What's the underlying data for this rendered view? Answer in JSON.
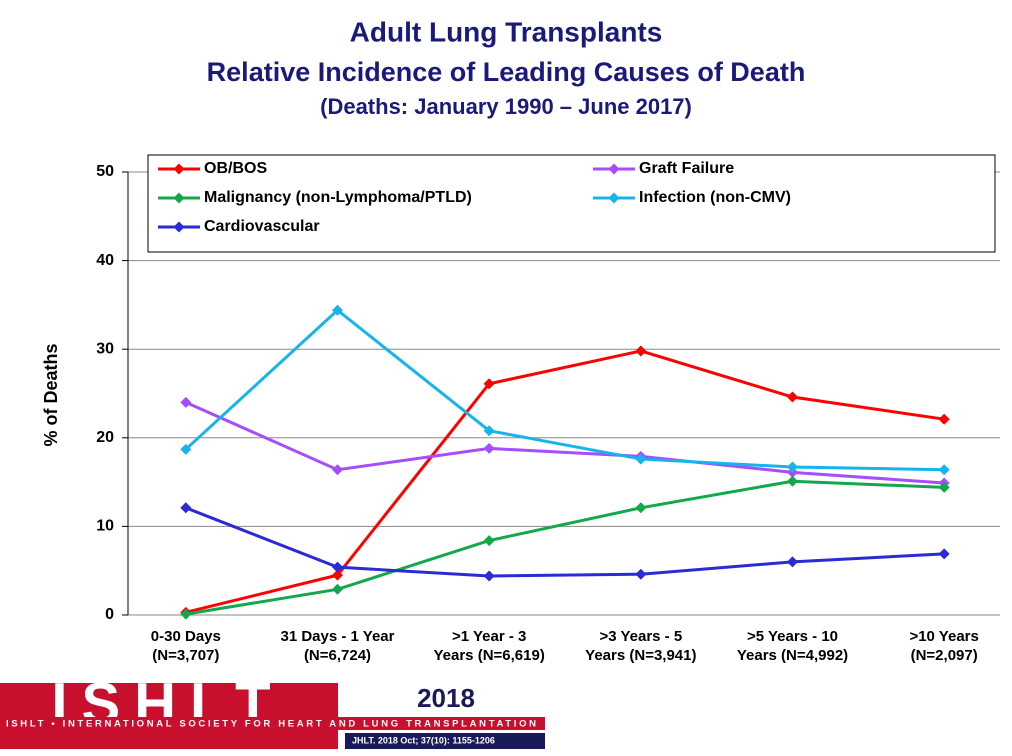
{
  "chart_data": {
    "type": "line",
    "title": "Adult Lung Transplants",
    "subtitle": "Relative Incidence of Leading Causes of Death",
    "period": "(Deaths: January 1990 – June 2017)",
    "y_label": "% of Deaths",
    "categories": [
      "0-30 Days\n(N=3,707)",
      "31 Days - 1 Year\n(N=6,724)",
      ">1 Year - 3\nYears (N=6,619)",
      ">3 Years - 5\nYears (N=3,941)",
      ">5 Years - 10\nYears (N=4,992)",
      ">10 Years\n(N=2,097)"
    ],
    "series": [
      {
        "name": "OB/BOS",
        "color": "#ff0000",
        "values": [
          0.3,
          4.5,
          26.1,
          29.8,
          24.6,
          22.1
        ]
      },
      {
        "name": "Graft Failure",
        "color": "#a64dff",
        "values": [
          24.0,
          16.4,
          18.8,
          17.9,
          16.1,
          14.9
        ]
      },
      {
        "name": "Malignancy (non-Lymphoma/PTLD)",
        "color": "#13a84b",
        "values": [
          0.1,
          2.9,
          8.4,
          12.1,
          15.1,
          14.4
        ]
      },
      {
        "name": "Infection (non-CMV)",
        "color": "#17b4ec",
        "values": [
          18.7,
          34.4,
          20.8,
          17.6,
          16.7,
          16.4
        ]
      },
      {
        "name": "Cardiovascular",
        "color": "#2a2ad6",
        "values": [
          12.1,
          5.4,
          4.4,
          4.6,
          6.0,
          6.9
        ]
      }
    ],
    "ylim": [
      0,
      50
    ],
    "yticks": [
      0,
      10,
      20,
      30,
      40,
      50
    ],
    "grid": true,
    "legend": "top"
  },
  "logo": {
    "name": "ISHLT",
    "year": "2018",
    "society": "ISHLT • INTERNATIONAL SOCIETY FOR HEART AND LUNG TRANSPLANTATION",
    "citation": "JHLT. 2018 Oct; 37(10): 1155-1206"
  }
}
